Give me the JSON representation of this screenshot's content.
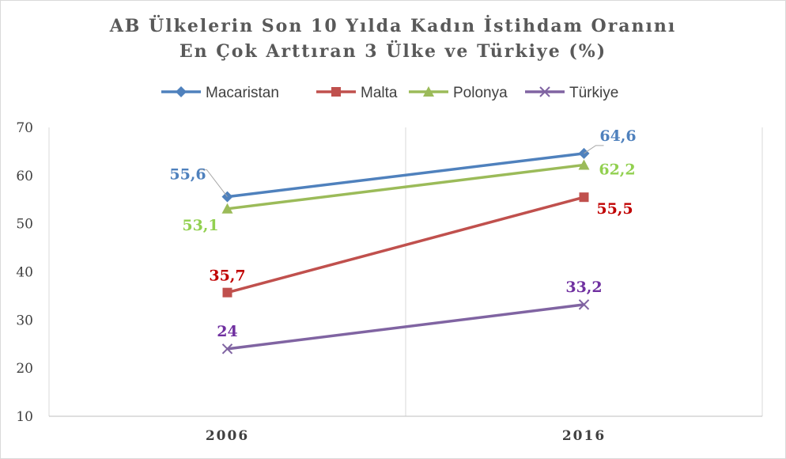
{
  "chart_data": {
    "type": "line",
    "title_line1": "AB Ülkelerin Son 10 Yılda Kadın İstihdam Oranını",
    "title_line2": "En Çok Arttıran 3 Ülke ve Türkiye (%)",
    "xlabel": "",
    "ylabel": "",
    "x": [
      "2006",
      "2016"
    ],
    "ylim": [
      10,
      70
    ],
    "yticks": [
      "10",
      "20",
      "30",
      "40",
      "50",
      "60",
      "70"
    ],
    "grid": "vertical",
    "legend_position": "top",
    "series": [
      {
        "name": "Macaristan",
        "values": [
          55.6,
          64.6
        ],
        "labels": [
          "55,6",
          "64,6"
        ],
        "color": "#4f81bd",
        "marker": "diamond"
      },
      {
        "name": "Malta",
        "values": [
          35.7,
          55.5
        ],
        "labels": [
          "35,7",
          "55,5"
        ],
        "color": "#c0504d",
        "label_color": "#c00000",
        "marker": "square"
      },
      {
        "name": "Polonya",
        "values": [
          53.1,
          62.2
        ],
        "labels": [
          "53,1",
          "62,2"
        ],
        "color": "#9bbb59",
        "label_color": "#92d050",
        "marker": "triangle"
      },
      {
        "name": "Türkiye",
        "values": [
          24,
          33.2
        ],
        "labels": [
          "24",
          "33,2"
        ],
        "color": "#8064a2",
        "label_color": "#7030a0",
        "marker": "x"
      }
    ]
  }
}
